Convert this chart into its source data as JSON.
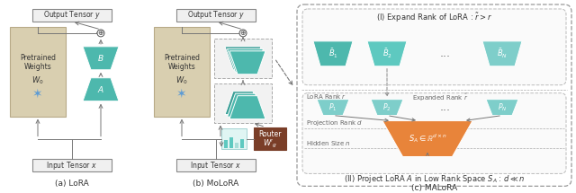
{
  "bg_color": "#ffffff",
  "pretrained_color": "#d9cfb0",
  "teal_color": "#4db8ad",
  "teal_dark": "#3a9e96",
  "teal_light": "#7ececa",
  "teal_mid": "#5ec9c0",
  "orange_color": "#e8843a",
  "router_color": "#7a3e28",
  "label_a": "(a) LoRA",
  "label_b": "(b) MoLoRA",
  "label_c": "(c) MALoRA",
  "gray_line": "#777777",
  "box_edge": "#999999"
}
